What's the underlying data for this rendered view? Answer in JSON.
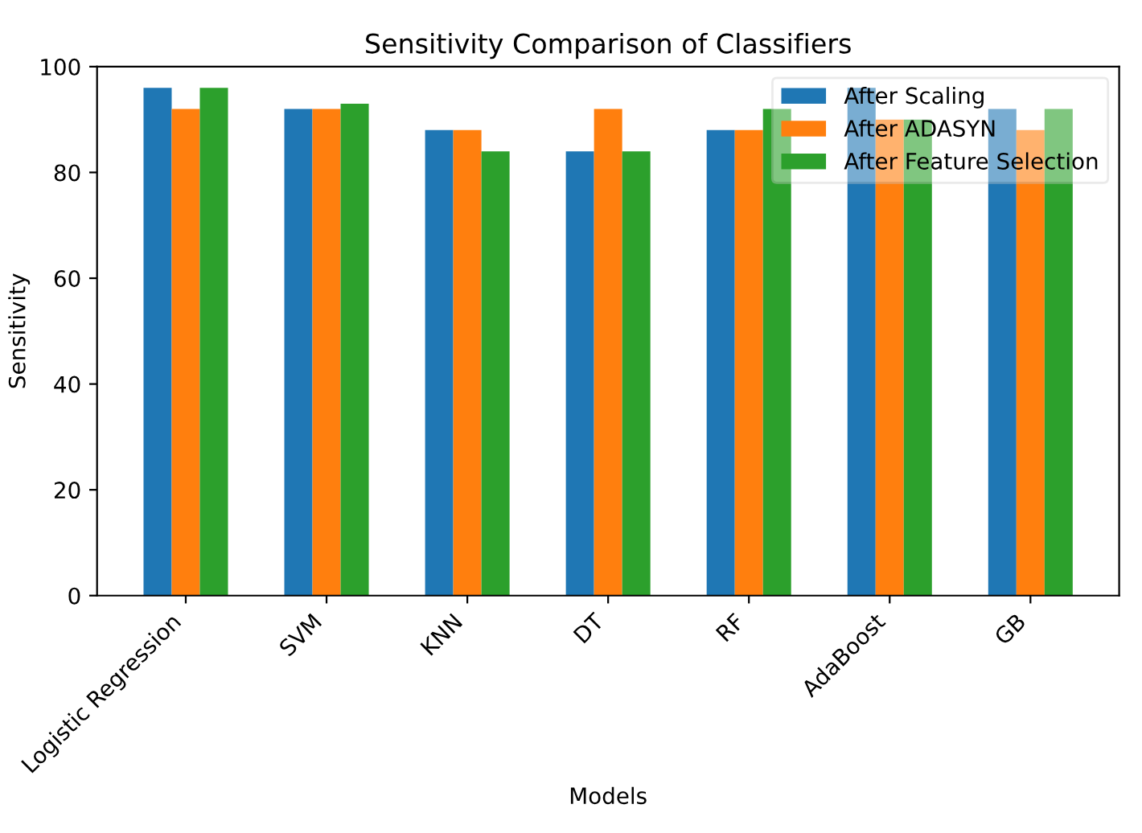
{
  "chart_data": {
    "type": "bar",
    "title": "Sensitivity Comparison of Classifiers",
    "xlabel": "Models",
    "ylabel": "Sensitivity",
    "categories": [
      "Logistic Regression",
      "SVM",
      "KNN",
      "DT",
      "RF",
      "AdaBoost",
      "GB"
    ],
    "series": [
      {
        "name": "After Scaling",
        "color": "#1f77b4",
        "values": [
          96,
          92,
          88,
          84,
          88,
          96,
          92
        ]
      },
      {
        "name": "After ADASYN",
        "color": "#ff7f0e",
        "values": [
          92,
          92,
          88,
          92,
          88,
          90,
          88
        ]
      },
      {
        "name": "After Feature Selection",
        "color": "#2ca02c",
        "values": [
          96,
          93,
          84,
          84,
          92,
          90,
          92
        ]
      }
    ],
    "ylim": [
      0,
      100
    ],
    "yticks": [
      0,
      20,
      40,
      60,
      80,
      100
    ],
    "grid": false,
    "legend": "top right"
  }
}
